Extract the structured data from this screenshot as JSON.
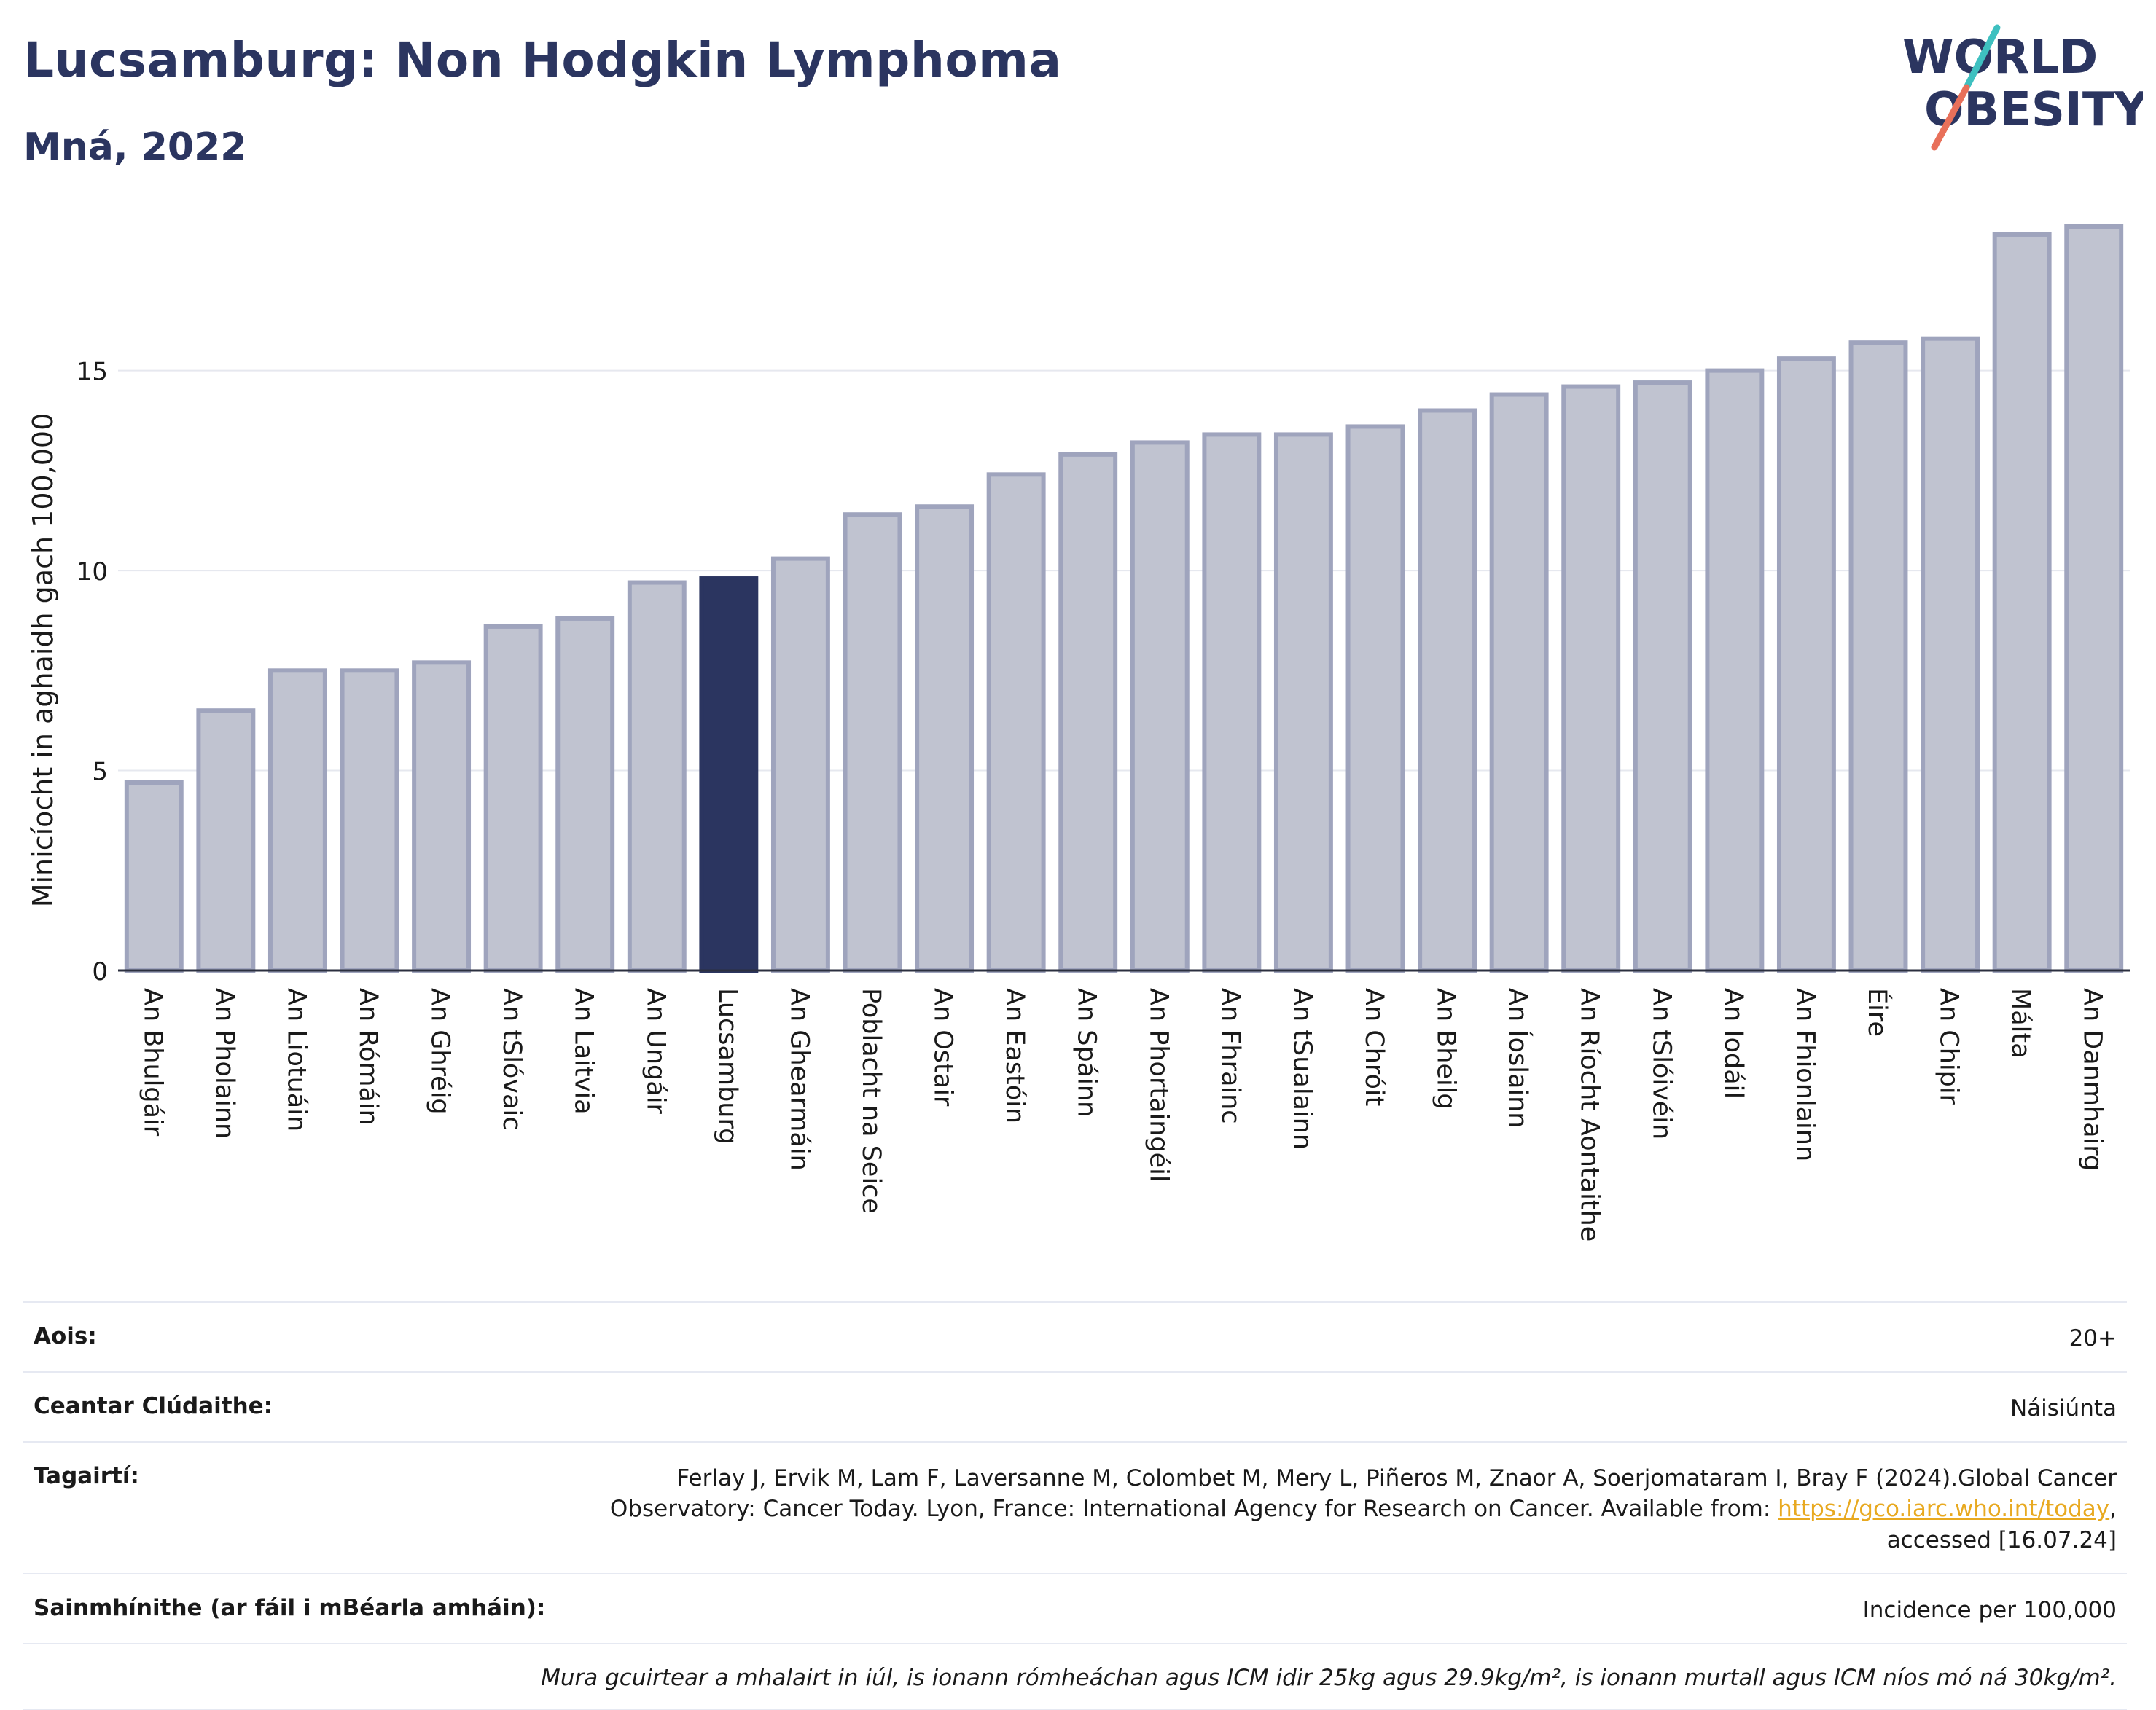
{
  "header": {
    "title": "Lucsamburg: Non Hodgkin Lymphoma",
    "subtitle": "Mná, 2022"
  },
  "logo": {
    "line1": "WORLD",
    "line2": "OBESITY"
  },
  "chart_data": {
    "type": "bar",
    "ylabel": "Minicíocht in aghaidh gach 100,000",
    "xlabel": "",
    "ylim": [
      0,
      18.8
    ],
    "yticks": [
      0,
      5,
      10,
      15
    ],
    "grid": true,
    "legend": "none",
    "highlight": "Lucsamburg",
    "colors": {
      "bar": "#c0c3d0",
      "bar_edge": "#9fa4bd",
      "highlight": "#2b3560"
    },
    "categories": [
      "An Bhulgáir",
      "An Pholainn",
      "An Liotuáin",
      "An Rómáin",
      "An Ghréig",
      "An tSlóvaic",
      "An Laitvia",
      "An Ungáir",
      "Lucsamburg",
      "An Ghearmáin",
      "Poblacht na Seice",
      "An Ostair",
      "An Eastóin",
      "An Spáinn",
      "An Phortaingéil",
      "An Fhrainc",
      "An tSualainn",
      "An Chróit",
      "An Bheilg",
      "An Íoslainn",
      "An Ríocht Aontaithe",
      "An tSlóivéin",
      "An Iodáil",
      "An Fhionlainn",
      "Éire",
      "An Chipir",
      "Málta",
      "An Danmhairg"
    ],
    "values": [
      4.7,
      6.5,
      7.5,
      7.5,
      7.7,
      8.6,
      8.8,
      9.7,
      9.8,
      10.3,
      11.4,
      11.6,
      12.4,
      12.9,
      13.2,
      13.4,
      13.4,
      13.6,
      14.0,
      14.4,
      14.6,
      14.7,
      15.0,
      15.3,
      15.7,
      15.8,
      18.4,
      18.6
    ]
  },
  "info": {
    "rows": [
      {
        "label": "Aois:",
        "value": "20+"
      },
      {
        "label": "Ceantar Clúdaithe:",
        "value": "Náisiúnta"
      },
      {
        "label": "Tagairtí:",
        "ref_line1": "Ferlay J, Ervik M, Lam F, Laversanne M, Colombet M, Mery L, Piñeros M, Znaor A, Soerjomataram I, Bray F (2024).Global Cancer",
        "ref_line2": "Observatory: Cancer Today. Lyon, France: International Agency for Research on Cancer. Available from: ",
        "ref_link": "https://gco.iarc.who.int/today",
        "ref_line2_end": ",",
        "ref_line3": "accessed [16.07.24]"
      },
      {
        "label": "Sainmhínithe (ar fáil i mBéarla amháin):",
        "value": "Incidence per 100,000"
      }
    ],
    "note": "Mura gcuirtear a mhalairt in iúl, is ionann rómheáchan agus ICM idir 25kg agus 29.9kg/m², is ionann murtall agus ICM níos mó ná 30kg/m²."
  }
}
